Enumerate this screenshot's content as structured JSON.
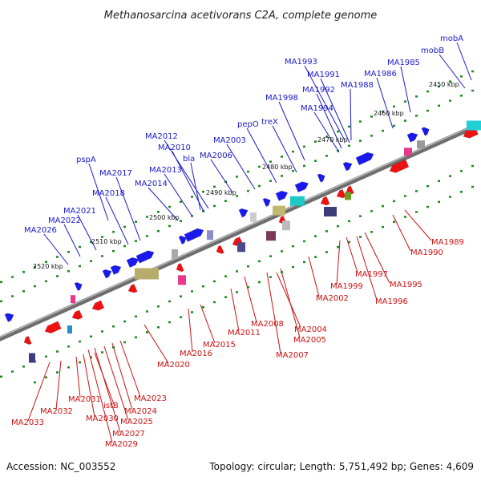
{
  "title": "Methanosarcina acetivorans C2A, complete genome",
  "footer": {
    "accession": "Accession: NC_003552",
    "summary": "Topology: circular; Length: 5,751,492 bp; Genes: 4,609"
  },
  "scale_labels": [
    "2450 kbp",
    "2460 kbp",
    "2470 kbp",
    "2480 kbp",
    "2490 kbp",
    "2500 kbp",
    "2510 kbp",
    "2520 kbp"
  ],
  "colors": {
    "forward": "#1a1aee",
    "reverse": "#ee1111",
    "backbone": "#7a7a7a",
    "tick": "#1e8a1e",
    "forward_label": "#1a1acc",
    "reverse_label": "#cc1111"
  },
  "forward_labels": [
    "mobA",
    "mobB",
    "MA1985",
    "MA1986",
    "MA1988",
    "MA1993",
    "MA1991",
    "MA1992",
    "MA1994",
    "MA1998",
    "treX",
    "pepO",
    "MA2003",
    "MA2006",
    "MA2012",
    "MA2010",
    "bla",
    "MA2013",
    "MA2014",
    "MA2017",
    "MA2018",
    "pspA",
    "MA2021",
    "MA2022",
    "MA2026"
  ],
  "reverse_labels": [
    "MA1989",
    "MA1990",
    "MA1995",
    "MA1996",
    "MA1997",
    "MA1999",
    "MA2002",
    "MA2004",
    "MA2005",
    "MA2007",
    "MA2008",
    "MA2011",
    "MA2015",
    "MA2016",
    "MA2020",
    "MA2023",
    "MA2024",
    "MA2025",
    "MA2027",
    "MA2029",
    "istB",
    "MA2030",
    "MA2031",
    "MA2032",
    "MA2033"
  ]
}
